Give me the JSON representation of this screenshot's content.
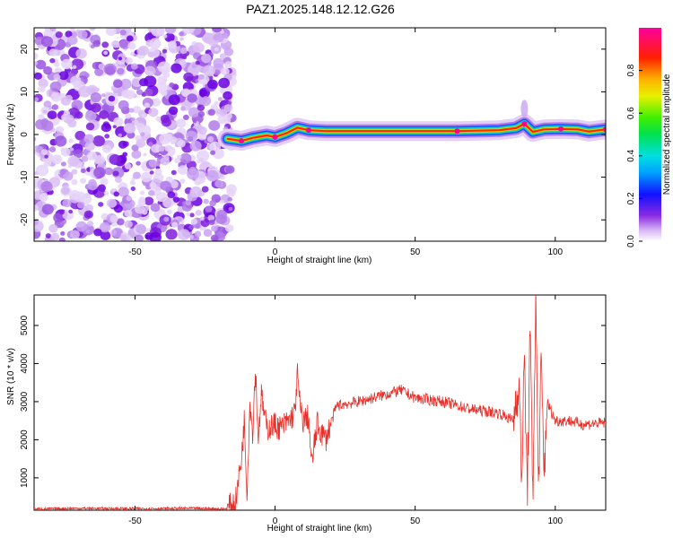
{
  "title": "PAZ1.2025.148.12.12.G26",
  "chart_data": [
    {
      "type": "heatmap",
      "xlabel": "Height of straight line (km)",
      "ylabel": "Frequency (Hz)",
      "xlim": [
        -86,
        118
      ],
      "ylim": [
        -25,
        25
      ],
      "xticks": [
        -50,
        0,
        50,
        100
      ],
      "yticks": [
        -20,
        -10,
        0,
        10,
        20
      ],
      "xtick_labels": [
        "-50",
        "0",
        "50",
        "100"
      ],
      "ytick_labels": [
        "-20",
        "-10",
        "0",
        "10",
        "20"
      ],
      "noise_region_x": [
        -86,
        -17
      ],
      "signal_start_x": -17,
      "signal_path": [
        {
          "x": -17,
          "y": -1.0
        },
        {
          "x": -12,
          "y": -1.5
        },
        {
          "x": -8,
          "y": -0.8
        },
        {
          "x": -3,
          "y": -0.2
        },
        {
          "x": 0,
          "y": -0.6
        },
        {
          "x": 4,
          "y": 0.3
        },
        {
          "x": 8,
          "y": 1.6
        },
        {
          "x": 12,
          "y": 1.0
        },
        {
          "x": 18,
          "y": 0.8
        },
        {
          "x": 40,
          "y": 0.8
        },
        {
          "x": 65,
          "y": 0.8
        },
        {
          "x": 80,
          "y": 1.0
        },
        {
          "x": 86,
          "y": 1.5
        },
        {
          "x": 89,
          "y": 2.5
        },
        {
          "x": 92,
          "y": 0.6
        },
        {
          "x": 96,
          "y": 1.2
        },
        {
          "x": 102,
          "y": 1.3
        },
        {
          "x": 108,
          "y": 1.2
        },
        {
          "x": 112,
          "y": 0.7
        },
        {
          "x": 118,
          "y": 1.2
        }
      ],
      "colorbar": {
        "label": "Normalized spectral amplitude",
        "range": [
          0,
          1
        ],
        "ticks": [
          0.0,
          0.2,
          0.4,
          0.6,
          0.8
        ],
        "tick_labels": [
          "0.0",
          "0.2",
          "0.4",
          "0.6",
          "0.8"
        ],
        "colormap": "rainbow (white to violet to blue to cyan to green to yellow to red to magenta)"
      }
    },
    {
      "type": "line",
      "xlabel": "Height of straight line (km)",
      "ylabel": "SNR (10 * v/v)",
      "xlim": [
        -86,
        118
      ],
      "ylim": [
        150,
        5800
      ],
      "xticks": [
        -50,
        0,
        50,
        100
      ],
      "yticks": [
        1000,
        2000,
        3000,
        4000,
        5000
      ],
      "xtick_labels": [
        "-50",
        "0",
        "50",
        "100"
      ],
      "ytick_labels": [
        "1000",
        "2000",
        "3000",
        "4000",
        "5000"
      ],
      "series": [
        {
          "color": "#e8302a",
          "x": [
            -86,
            -70,
            -50,
            -30,
            -17,
            -14,
            -12,
            -11,
            -10,
            -9,
            -8,
            -7,
            -6,
            -5,
            -3,
            0,
            2,
            5,
            7,
            8,
            9,
            10,
            12,
            13,
            15,
            18,
            22,
            30,
            40,
            45,
            50,
            60,
            70,
            80,
            85,
            87,
            88,
            89,
            90,
            91,
            92,
            93,
            94,
            95,
            96,
            97,
            100,
            105,
            110,
            118
          ],
          "y": [
            180,
            200,
            190,
            200,
            180,
            400,
            1500,
            2500,
            600,
            3000,
            2200,
            3900,
            2000,
            3200,
            2300,
            2400,
            2300,
            2500,
            2700,
            3700,
            2800,
            2500,
            2600,
            1300,
            2400,
            2000,
            2900,
            3000,
            3200,
            3300,
            3100,
            3000,
            2800,
            2700,
            2500,
            3600,
            1000,
            4200,
            600,
            4800,
            400,
            5800,
            700,
            4100,
            1000,
            3000,
            2500,
            2500,
            2400,
            2450
          ]
        }
      ]
    }
  ]
}
